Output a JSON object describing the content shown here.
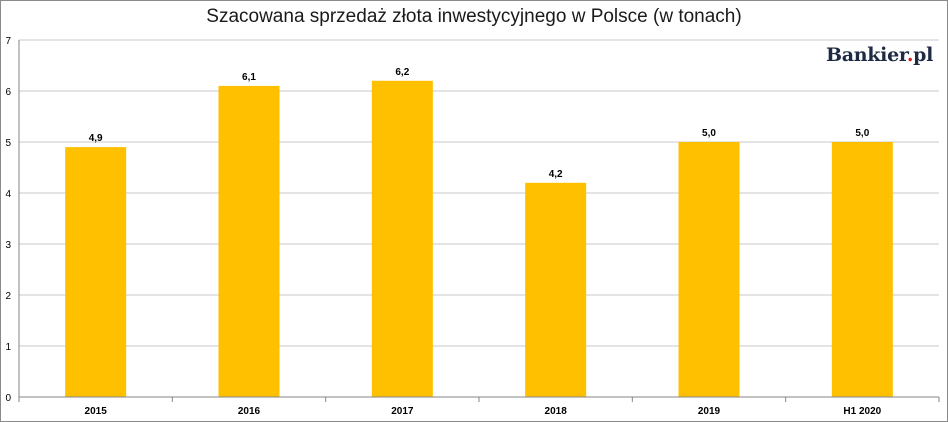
{
  "chart_data": {
    "type": "bar",
    "title": "Szacowana sprzedaż złota inwestycyjnego w Polsce (w tonach)",
    "categories": [
      "2015",
      "2016",
      "2017",
      "2018",
      "2019",
      "H1 2020"
    ],
    "values": [
      4.9,
      6.1,
      6.2,
      4.2,
      5.0,
      5.0
    ],
    "data_labels": [
      "4,9",
      "6,1",
      "6,2",
      "4,2",
      "5,0",
      "5,0"
    ],
    "yticks": [
      "0",
      "1",
      "2",
      "3",
      "4",
      "5",
      "6",
      "7"
    ],
    "ylim": [
      0,
      7
    ],
    "grid": true,
    "bar_color": "#ffc000",
    "grid_color": "#c8c8c8"
  },
  "logo": {
    "brand": "Bankier",
    "dot": ".",
    "suffix": "pl"
  }
}
